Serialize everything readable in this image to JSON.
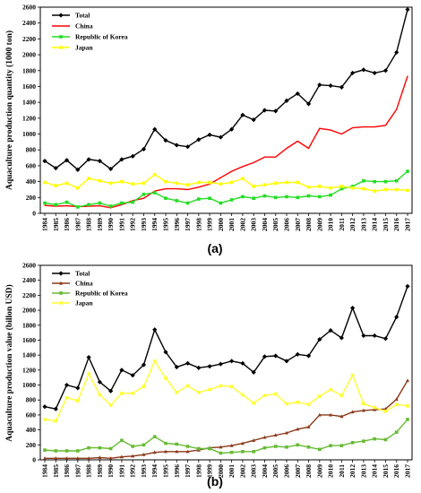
{
  "chart_data": [
    {
      "type": "line",
      "panel_label": "(a)",
      "xlabel": "",
      "ylabel": "Aquaculture production quantity (1000 ton)",
      "ylim": [
        0,
        2600
      ],
      "yticks": [
        0,
        200,
        400,
        600,
        800,
        1000,
        1200,
        1400,
        1600,
        1800,
        2000,
        2200,
        2400,
        2600
      ],
      "categories": [
        "1984",
        "1985",
        "1986",
        "1987",
        "1988",
        "1989",
        "1990",
        "1991",
        "1992",
        "1993",
        "1994",
        "1995",
        "1996",
        "1997",
        "1998",
        "1999",
        "2000",
        "2001",
        "2002",
        "2003",
        "2004",
        "2005",
        "2006",
        "2007",
        "2008",
        "2009",
        "2010",
        "2011",
        "2012",
        "2013",
        "2014",
        "2015",
        "2016",
        "2017"
      ],
      "legend_position": "top-left",
      "grid": false,
      "series": [
        {
          "name": "Total",
          "color": "#000000",
          "marker": "diamond",
          "values": [
            660,
            570,
            670,
            550,
            680,
            660,
            560,
            680,
            720,
            810,
            1060,
            920,
            860,
            840,
            930,
            990,
            960,
            1060,
            1240,
            1180,
            1300,
            1290,
            1420,
            1510,
            1380,
            1620,
            1610,
            1590,
            1770,
            1810,
            1770,
            1800,
            2030,
            2570
          ]
        },
        {
          "name": "China",
          "color": "#ff0000",
          "marker": "line",
          "values": [
            100,
            90,
            95,
            85,
            90,
            95,
            70,
            110,
            160,
            190,
            280,
            310,
            310,
            300,
            330,
            370,
            450,
            530,
            590,
            640,
            710,
            710,
            820,
            910,
            820,
            1070,
            1050,
            1000,
            1080,
            1090,
            1090,
            1110,
            1310,
            1730
          ]
        },
        {
          "name": "Republic of Korea",
          "color": "#22dd22",
          "marker": "square",
          "values": [
            130,
            110,
            140,
            80,
            110,
            130,
            90,
            130,
            140,
            240,
            260,
            190,
            160,
            130,
            180,
            190,
            130,
            170,
            210,
            190,
            220,
            200,
            210,
            200,
            220,
            210,
            230,
            310,
            340,
            410,
            400,
            400,
            410,
            530
          ]
        },
        {
          "name": "Japan",
          "color": "#ffff00",
          "marker": "square",
          "values": [
            390,
            350,
            380,
            320,
            440,
            410,
            380,
            400,
            370,
            380,
            490,
            400,
            380,
            360,
            390,
            390,
            370,
            390,
            440,
            340,
            360,
            380,
            390,
            390,
            330,
            340,
            320,
            340,
            320,
            310,
            280,
            300,
            300,
            290
          ]
        }
      ]
    },
    {
      "type": "line",
      "panel_label": "(b)",
      "xlabel": "",
      "ylabel": "Aquaculture production value (billon USD)",
      "ylim": [
        0,
        2600
      ],
      "yticks": [
        0,
        200,
        400,
        600,
        800,
        1000,
        1200,
        1400,
        1600,
        1800,
        2000,
        2200,
        2400,
        2600
      ],
      "categories": [
        "1984",
        "1985",
        "1986",
        "1987",
        "1988",
        "1989",
        "1990",
        "1991",
        "1992",
        "1993",
        "1994",
        "1995",
        "1996",
        "1997",
        "1998",
        "1999",
        "2000",
        "2001",
        "2002",
        "2003",
        "2004",
        "2005",
        "2006",
        "2007",
        "2008",
        "2009",
        "2010",
        "2011",
        "2012",
        "2013",
        "2014",
        "2015",
        "2016",
        "2017"
      ],
      "legend_position": "top-left",
      "grid": false,
      "series": [
        {
          "name": "Total",
          "color": "#000000",
          "marker": "diamond",
          "values": [
            710,
            680,
            1000,
            960,
            1370,
            1040,
            920,
            1200,
            1130,
            1270,
            1740,
            1440,
            1240,
            1290,
            1230,
            1250,
            1280,
            1320,
            1290,
            1170,
            1380,
            1390,
            1320,
            1410,
            1390,
            1610,
            1730,
            1630,
            2030,
            1660,
            1660,
            1620,
            1910,
            2320
          ]
        },
        {
          "name": "China",
          "color": "#8b3a1a",
          "marker": "triangle",
          "values": [
            20,
            20,
            20,
            20,
            20,
            30,
            20,
            40,
            50,
            70,
            100,
            110,
            110,
            110,
            130,
            160,
            170,
            190,
            220,
            260,
            300,
            330,
            360,
            410,
            440,
            600,
            600,
            580,
            640,
            660,
            670,
            680,
            810,
            1060
          ]
        },
        {
          "name": "Republic of Korea",
          "color": "#66bb33",
          "marker": "square",
          "values": [
            130,
            120,
            120,
            120,
            160,
            160,
            150,
            260,
            180,
            200,
            310,
            220,
            210,
            180,
            150,
            150,
            90,
            100,
            110,
            110,
            160,
            180,
            170,
            200,
            170,
            140,
            190,
            190,
            230,
            250,
            280,
            270,
            370,
            540
          ]
        },
        {
          "name": "Japan",
          "color": "#ffff33",
          "marker": "square",
          "values": [
            540,
            520,
            830,
            790,
            1150,
            870,
            730,
            890,
            890,
            980,
            1320,
            1090,
            900,
            990,
            900,
            940,
            990,
            980,
            870,
            760,
            860,
            880,
            750,
            770,
            740,
            850,
            940,
            860,
            1130,
            750,
            700,
            650,
            740,
            720
          ]
        }
      ]
    }
  ]
}
